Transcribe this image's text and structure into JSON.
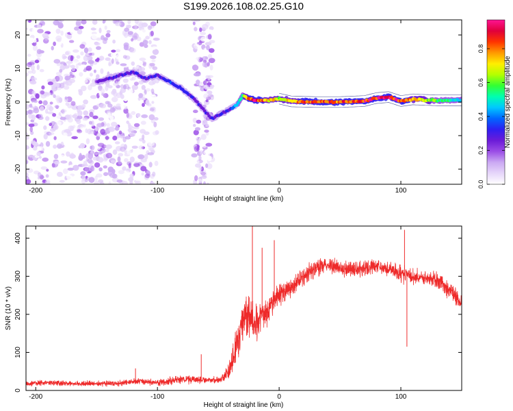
{
  "title": "S199.2026.108.02.25.G10",
  "colorbar": {
    "label": "Normalized spectral amplitude",
    "ticks": [
      "0.0",
      "0.2",
      "0.4",
      "0.6",
      "0.8"
    ],
    "tick_values": [
      0.0,
      0.2,
      0.4,
      0.6,
      0.8
    ],
    "range": [
      0,
      0.97
    ],
    "colors": [
      "#ffffff",
      "#e6d6fa",
      "#cba9f3",
      "#9b4de6",
      "#6b1bd8",
      "#2f1ff2",
      "#0066ff",
      "#00c8ff",
      "#00ffb0",
      "#33ff33",
      "#b4ff00",
      "#ffee00",
      "#ff9900",
      "#ff3300",
      "#e0003c",
      "#ff1493"
    ]
  },
  "chart_data": [
    {
      "type": "heatmap",
      "name": "spectrogram",
      "xlabel": "Height of straight line (km)",
      "ylabel": "Frequency (Hz)",
      "xlim": [
        -208,
        150
      ],
      "ylim": [
        -24.5,
        24.5
      ],
      "xticks": [
        -200,
        -100,
        0,
        100
      ],
      "xtick_labels": [
        "-200",
        "-100",
        "0",
        "100"
      ],
      "yticks": [
        -20,
        -10,
        0,
        10,
        20
      ],
      "ytick_labels": [
        "-20",
        "-10",
        "0",
        "10",
        "20"
      ],
      "ridge": {
        "x": [
          -150,
          -140,
          -130,
          -120,
          -110,
          -100,
          -90,
          -80,
          -70,
          -60,
          -55,
          -50,
          -45,
          -40,
          -35,
          -30,
          -25,
          -20,
          -10,
          0,
          10,
          30,
          50,
          70,
          80,
          90,
          100,
          110,
          130,
          150
        ],
        "frequency": [
          6,
          7,
          8,
          9,
          7,
          8,
          6,
          4,
          1,
          -3,
          -5,
          -4,
          -3,
          -2,
          -1,
          2,
          1,
          0.5,
          0.5,
          1,
          0.2,
          0,
          0,
          0.3,
          1.2,
          1.5,
          0.3,
          0.8,
          0.5,
          0.5
        ],
        "amplitude": [
          0.25,
          0.3,
          0.3,
          0.3,
          0.3,
          0.3,
          0.35,
          0.35,
          0.3,
          0.3,
          0.3,
          0.3,
          0.3,
          0.35,
          0.45,
          0.6,
          0.85,
          0.95,
          0.8,
          0.7,
          0.8,
          0.9,
          0.85,
          0.9,
          0.95,
          0.95,
          0.9,
          0.8,
          0.6,
          0.5
        ]
      },
      "noise_regions": {
        "x_ranges": [
          [
            -208,
            -100
          ],
          [
            -70,
            -55
          ]
        ],
        "frequency_range": [
          -24.5,
          24.5
        ],
        "amplitude_range": [
          0.02,
          0.2
        ]
      }
    },
    {
      "type": "line",
      "name": "snr",
      "xlabel": "Height of straight line (km)",
      "ylabel": "SNR (10 * v/v)",
      "color": "#ee2a2a",
      "xlim": [
        -208,
        150
      ],
      "ylim": [
        0,
        432
      ],
      "xticks": [
        -200,
        -100,
        0,
        100
      ],
      "xtick_labels": [
        "-200",
        "-100",
        "0",
        "100"
      ],
      "yticks": [
        0,
        100,
        200,
        300,
        400
      ],
      "ytick_labels": [
        "0",
        "100",
        "200",
        "300",
        "400"
      ],
      "series": [
        {
          "name": "SNR",
          "x": [
            -208,
            -190,
            -170,
            -150,
            -130,
            -115,
            -100,
            -90,
            -80,
            -70,
            -60,
            -55,
            -50,
            -45,
            -40,
            -35,
            -30,
            -25,
            -20,
            -15,
            -10,
            -5,
            0,
            10,
            20,
            30,
            40,
            50,
            60,
            70,
            80,
            90,
            100,
            110,
            120,
            130,
            140,
            150
          ],
          "y": [
            18,
            20,
            18,
            18,
            19,
            25,
            20,
            25,
            30,
            28,
            28,
            26,
            28,
            35,
            60,
            120,
            180,
            200,
            170,
            190,
            210,
            230,
            250,
            270,
            300,
            320,
            330,
            320,
            320,
            320,
            325,
            320,
            305,
            300,
            295,
            290,
            265,
            230
          ],
          "noise": [
            7,
            7,
            7,
            7,
            8,
            9,
            8,
            10,
            12,
            12,
            10,
            8,
            10,
            14,
            35,
            55,
            60,
            60,
            55,
            50,
            45,
            40,
            35,
            30,
            28,
            25,
            22,
            22,
            22,
            22,
            22,
            22,
            22,
            22,
            22,
            22,
            25,
            25
          ]
        }
      ],
      "spikes": [
        {
          "x": -22,
          "y": 432
        },
        {
          "x": -14,
          "y": 375
        },
        {
          "x": -4,
          "y": 395
        },
        {
          "x": 103,
          "y": 422
        },
        {
          "x": 105,
          "y": 115
        },
        {
          "x": -64,
          "y": 95
        },
        {
          "x": -118,
          "y": 58
        }
      ]
    }
  ]
}
